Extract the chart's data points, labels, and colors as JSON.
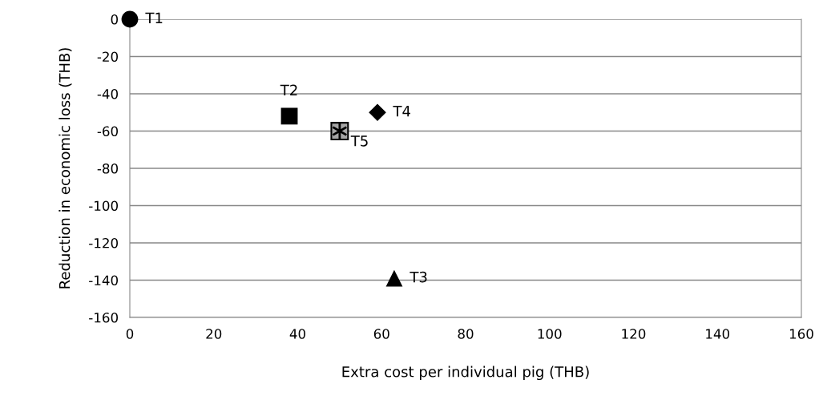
{
  "chart_data": {
    "type": "scatter",
    "xlabel": "Extra cost per individual pig (THB)",
    "ylabel": "Reduction in economic loss (THB)",
    "xlim": [
      0,
      160
    ],
    "xticks": [
      0,
      20,
      40,
      60,
      80,
      100,
      120,
      140,
      160
    ],
    "ylim": [
      -160,
      0
    ],
    "yticks": [
      -160,
      -140,
      -120,
      -100,
      -80,
      -60,
      -40,
      -20,
      0
    ],
    "grid": "y",
    "series": [
      {
        "name": "T1",
        "x": [
          0
        ],
        "values": [
          0
        ],
        "marker": "circle",
        "color": "#000000"
      },
      {
        "name": "T2",
        "x": [
          38
        ],
        "values": [
          -52
        ],
        "marker": "square",
        "color": "#000000"
      },
      {
        "name": "T3",
        "x": [
          63
        ],
        "values": [
          -139
        ],
        "marker": "triangle",
        "color": "#000000"
      },
      {
        "name": "T4",
        "x": [
          59
        ],
        "values": [
          -50
        ],
        "marker": "diamond",
        "color": "#000000"
      },
      {
        "name": "T5",
        "x": [
          50
        ],
        "values": [
          -60
        ],
        "marker": "square",
        "color": "#a6a6a6"
      }
    ]
  }
}
